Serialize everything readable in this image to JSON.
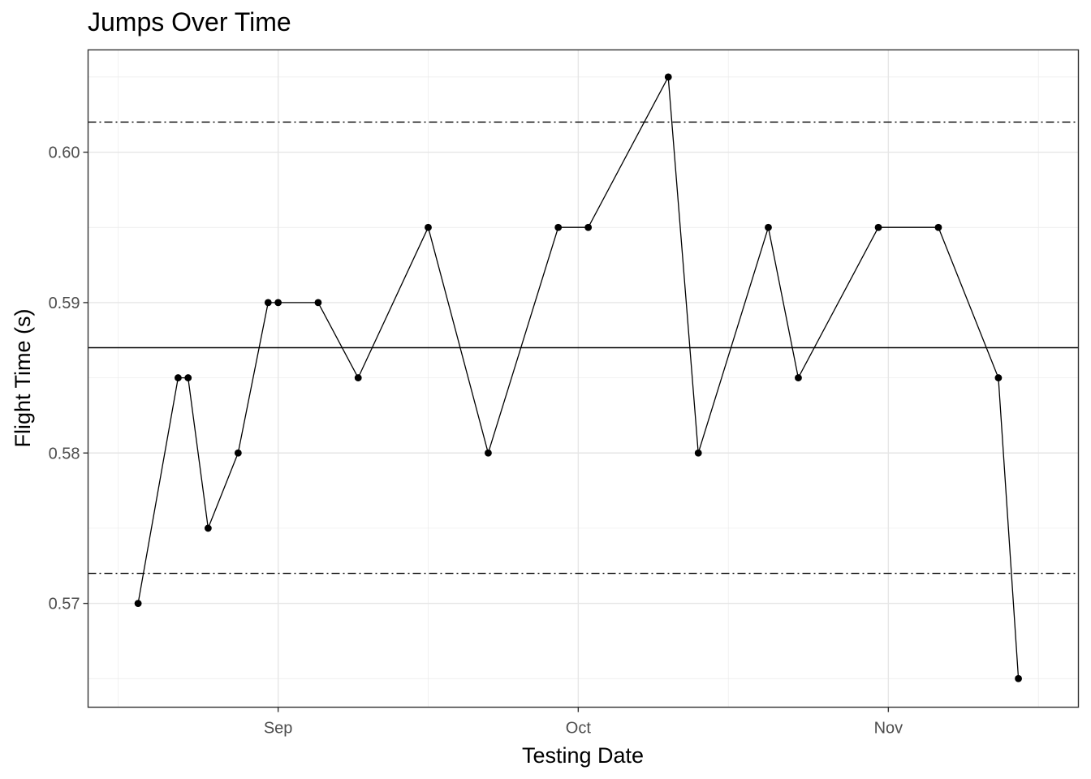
{
  "chart_data": {
    "type": "line",
    "title": "Jumps Over Time",
    "xlabel": "Testing Date",
    "ylabel": "Flight Time (s)",
    "x_axis": "date",
    "xlim": [
      "2023-08-13",
      "2023-11-20"
    ],
    "ylim": [
      0.5631,
      0.6068
    ],
    "x_ticks": [
      {
        "date": "2023-09-01",
        "label": "Sep"
      },
      {
        "date": "2023-10-01",
        "label": "Oct"
      },
      {
        "date": "2023-11-01",
        "label": "Nov"
      }
    ],
    "y_ticks": [
      {
        "value": 0.57,
        "label": "0.57"
      },
      {
        "value": 0.58,
        "label": "0.58"
      },
      {
        "value": 0.59,
        "label": "0.59"
      },
      {
        "value": 0.6,
        "label": "0.60"
      }
    ],
    "y_minor_ticks": [
      0.565,
      0.575,
      0.585,
      0.595,
      0.605
    ],
    "x_minor_ticks": [
      "2023-08-16",
      "2023-09-16",
      "2023-10-16",
      "2023-11-16"
    ],
    "grid": true,
    "reference_lines": [
      {
        "y": 0.587,
        "style": "solid"
      },
      {
        "y": 0.602,
        "style": "dashdot"
      },
      {
        "y": 0.572,
        "style": "dashdot"
      }
    ],
    "series": [
      {
        "points": [
          {
            "x": "2023-08-18",
            "y": 0.57
          },
          {
            "x": "2023-08-22",
            "y": 0.585
          },
          {
            "x": "2023-08-23",
            "y": 0.585
          },
          {
            "x": "2023-08-25",
            "y": 0.575
          },
          {
            "x": "2023-08-28",
            "y": 0.58
          },
          {
            "x": "2023-08-31",
            "y": 0.59
          },
          {
            "x": "2023-09-01",
            "y": 0.59
          },
          {
            "x": "2023-09-05",
            "y": 0.59
          },
          {
            "x": "2023-09-09",
            "y": 0.585
          },
          {
            "x": "2023-09-16",
            "y": 0.595
          },
          {
            "x": "2023-09-22",
            "y": 0.58
          },
          {
            "x": "2023-09-29",
            "y": 0.595
          },
          {
            "x": "2023-10-02",
            "y": 0.595
          },
          {
            "x": "2023-10-10",
            "y": 0.605
          },
          {
            "x": "2023-10-13",
            "y": 0.58
          },
          {
            "x": "2023-10-20",
            "y": 0.595
          },
          {
            "x": "2023-10-23",
            "y": 0.585
          },
          {
            "x": "2023-10-31",
            "y": 0.595
          },
          {
            "x": "2023-11-06",
            "y": 0.595
          },
          {
            "x": "2023-11-12",
            "y": 0.585
          },
          {
            "x": "2023-11-14",
            "y": 0.565
          }
        ]
      }
    ]
  }
}
